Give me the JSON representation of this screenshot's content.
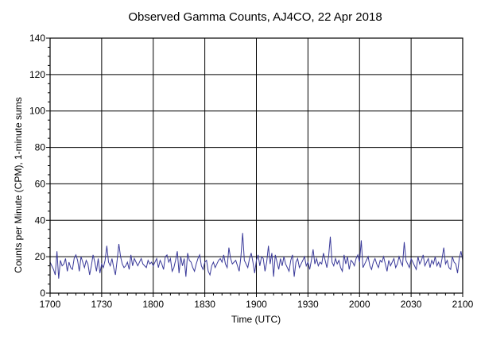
{
  "chart_data": {
    "type": "line",
    "title": "Observed Gamma Counts, AJ4CO, 22 Apr 2018",
    "xlabel": "Time (UTC)",
    "ylabel": "Counts per Minute (CPM), 1-minute sums",
    "x_ticks": [
      {
        "minutes": 0,
        "label": "1700"
      },
      {
        "minutes": 30,
        "label": "1730"
      },
      {
        "minutes": 60,
        "label": "1800"
      },
      {
        "minutes": 90,
        "label": "1830"
      },
      {
        "minutes": 120,
        "label": "1900"
      },
      {
        "minutes": 150,
        "label": "1930"
      },
      {
        "minutes": 180,
        "label": "2000"
      },
      {
        "minutes": 210,
        "label": "2030"
      },
      {
        "minutes": 240,
        "label": "2100"
      }
    ],
    "y_ticks": [
      0,
      20,
      40,
      60,
      80,
      100,
      120,
      140
    ],
    "ylim": [
      0,
      140
    ],
    "grid": true,
    "line_color": "#3a3a9a",
    "series": [
      {
        "values": [
          17,
          15,
          13,
          10,
          23,
          8,
          18,
          15,
          16,
          19,
          12,
          17,
          14,
          13,
          19,
          21,
          18,
          12,
          20,
          17,
          14,
          18,
          16,
          10,
          15,
          21,
          17,
          12,
          19,
          11,
          16,
          14,
          18,
          26,
          17,
          15,
          19,
          14,
          10,
          18,
          27,
          20,
          16,
          14,
          15,
          17,
          13,
          21,
          15,
          19,
          17,
          15,
          17,
          19,
          16,
          15,
          14,
          18,
          16,
          17,
          15,
          17,
          19,
          14,
          18,
          16,
          13,
          20,
          21,
          17,
          19,
          12,
          14,
          18,
          23,
          11,
          20,
          15,
          19,
          9,
          22,
          18,
          17,
          14,
          12,
          16,
          19,
          21,
          15,
          13,
          17,
          18,
          12,
          10,
          15,
          17,
          14,
          16,
          18,
          19,
          17,
          21,
          16,
          14,
          25,
          19,
          16,
          17,
          18,
          15,
          12,
          20,
          33,
          18,
          16,
          14,
          19,
          22,
          17,
          11,
          18,
          21,
          15,
          20,
          19,
          12,
          17,
          26,
          16,
          22,
          9,
          21,
          17,
          13,
          19,
          15,
          20,
          16,
          14,
          12,
          18,
          21,
          9,
          17,
          19,
          14,
          16,
          18,
          20,
          15,
          17,
          13,
          18,
          24,
          16,
          19,
          15,
          17,
          16,
          22,
          18,
          14,
          20,
          31,
          17,
          15,
          19,
          16,
          18,
          14,
          12,
          21,
          16,
          20,
          13,
          18,
          17,
          15,
          19,
          21,
          17,
          29,
          14,
          16,
          18,
          20,
          15,
          13,
          17,
          19,
          16,
          14,
          18,
          17,
          20,
          16,
          12,
          18,
          15,
          17,
          19,
          14,
          16,
          20,
          17,
          15,
          28,
          18,
          16,
          14,
          19,
          17,
          15,
          13,
          20,
          16,
          18,
          21,
          15,
          17,
          19,
          14,
          18,
          16,
          20,
          15,
          17,
          14,
          19,
          25,
          16,
          18,
          14,
          13,
          20,
          17,
          16,
          11,
          19,
          23,
          18
        ]
      }
    ]
  }
}
